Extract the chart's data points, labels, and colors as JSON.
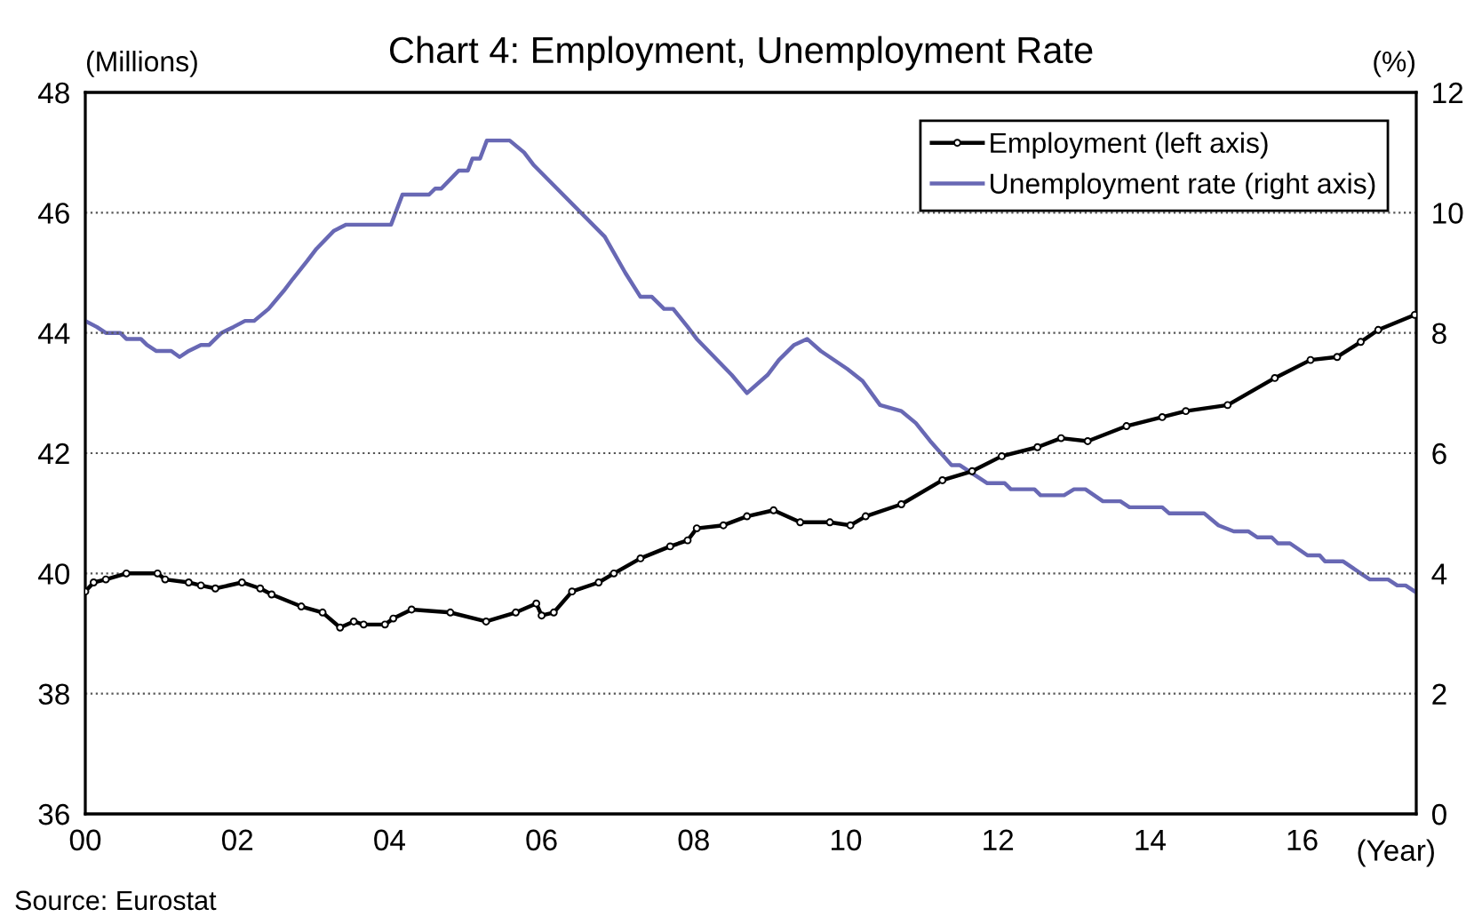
{
  "chart_data": {
    "type": "line",
    "title": "Chart 4: Employment, Unemployment Rate",
    "xlabel": "(Year)",
    "ylabel": "(Millions)",
    "y2label": "(%)",
    "annotations": [
      "Source: Eurostat"
    ],
    "xlim": [
      2000,
      2017.5
    ],
    "xticks": [
      {
        "value": 2000,
        "label": "00"
      },
      {
        "value": 2002,
        "label": "02"
      },
      {
        "value": 2004,
        "label": "04"
      },
      {
        "value": 2006,
        "label": "06"
      },
      {
        "value": 2008,
        "label": "08"
      },
      {
        "value": 2010,
        "label": "10"
      },
      {
        "value": 2012,
        "label": "12"
      },
      {
        "value": 2014,
        "label": "14"
      },
      {
        "value": 2016,
        "label": "16"
      }
    ],
    "ylim": [
      36,
      48
    ],
    "yticks": [
      36,
      38,
      40,
      42,
      44,
      46,
      48
    ],
    "y2lim": [
      0,
      12
    ],
    "y2ticks": [
      0,
      2,
      4,
      6,
      8,
      10,
      12
    ],
    "grid": "y",
    "legend": "top right",
    "line_style": "solid",
    "series": [
      {
        "name": "Employment (left axis)",
        "color": "#000000",
        "marker": "circle",
        "x": [
          2000.0,
          2000.11,
          2000.27,
          2000.54,
          2000.95,
          2001.05,
          2001.36,
          2001.52,
          2001.71,
          2002.06,
          2002.3,
          2002.45,
          2002.84,
          2003.12,
          2003.35,
          2003.53,
          2003.66,
          2003.94,
          2004.05,
          2004.29,
          2004.8,
          2005.27,
          2005.66,
          2005.93,
          2006.0,
          2006.16,
          2006.4,
          2006.75,
          2006.95,
          2007.3,
          2007.69,
          2007.92,
          2008.04,
          2008.39,
          2008.7,
          2009.05,
          2009.4,
          2009.79,
          2010.06,
          2010.26,
          2010.73,
          2011.27,
          2011.66,
          2012.05,
          2012.52,
          2012.83,
          2013.18,
          2013.69,
          2014.16,
          2014.47,
          2015.02,
          2015.64,
          2016.11,
          2016.46,
          2016.77,
          2017.0,
          2017.48
        ],
        "values": [
          39.7,
          39.85,
          39.9,
          40.0,
          40.0,
          39.9,
          39.85,
          39.8,
          39.75,
          39.85,
          39.75,
          39.65,
          39.45,
          39.35,
          39.1,
          39.2,
          39.15,
          39.15,
          39.25,
          39.4,
          39.35,
          39.2,
          39.35,
          39.5,
          39.3,
          39.35,
          39.7,
          39.85,
          40.0,
          40.25,
          40.45,
          40.55,
          40.75,
          40.8,
          40.95,
          41.05,
          40.85,
          40.85,
          40.8,
          40.95,
          41.15,
          41.55,
          41.7,
          41.95,
          42.1,
          42.25,
          42.2,
          42.45,
          42.6,
          42.7,
          42.8,
          43.25,
          43.55,
          43.6,
          43.85,
          44.05,
          44.3
        ]
      },
      {
        "name": "Unemployment rate (right axis)",
        "color": "#6868b4",
        "axis": "y2",
        "marker": "none",
        "x": [
          2000.0,
          2000.15,
          2000.27,
          2000.46,
          2000.54,
          2000.73,
          2000.81,
          2000.93,
          2001.13,
          2001.24,
          2001.36,
          2001.52,
          2001.63,
          2001.79,
          2001.95,
          2002.1,
          2002.22,
          2002.41,
          2002.61,
          2002.73,
          2002.92,
          2003.04,
          2003.27,
          2003.43,
          2004.02,
          2004.17,
          2004.52,
          2004.6,
          2004.68,
          2004.91,
          2005.03,
          2005.09,
          2005.19,
          2005.28,
          2005.58,
          2005.77,
          2005.89,
          2006.83,
          2007.1,
          2007.3,
          2007.45,
          2007.61,
          2007.73,
          2007.92,
          2008.04,
          2008.5,
          2008.7,
          2008.97,
          2009.12,
          2009.32,
          2009.49,
          2009.67,
          2010.02,
          2010.22,
          2010.45,
          2010.73,
          2010.92,
          2011.11,
          2011.39,
          2011.5,
          2011.86,
          2012.09,
          2012.17,
          2012.48,
          2012.56,
          2012.87,
          2013.0,
          2013.15,
          2013.38,
          2013.61,
          2013.73,
          2014.16,
          2014.25,
          2014.71,
          2014.9,
          2015.1,
          2015.29,
          2015.41,
          2015.6,
          2015.68,
          2015.84,
          2016.07,
          2016.23,
          2016.3,
          2016.54,
          2016.77,
          2016.89,
          2017.13,
          2017.25,
          2017.36,
          2017.48
        ],
        "values": [
          8.2,
          8.1,
          8.0,
          8.0,
          7.9,
          7.9,
          7.8,
          7.7,
          7.7,
          7.6,
          7.7,
          7.8,
          7.8,
          8.0,
          8.1,
          8.2,
          8.2,
          8.4,
          8.7,
          8.9,
          9.2,
          9.4,
          9.7,
          9.8,
          9.8,
          10.3,
          10.3,
          10.4,
          10.4,
          10.7,
          10.7,
          10.9,
          10.9,
          11.2,
          11.2,
          11.0,
          10.8,
          9.6,
          9.0,
          8.6,
          8.6,
          8.4,
          8.4,
          8.1,
          7.9,
          7.3,
          7.0,
          7.3,
          7.55,
          7.8,
          7.9,
          7.7,
          7.4,
          7.2,
          6.8,
          6.7,
          6.5,
          6.2,
          5.8,
          5.8,
          5.5,
          5.5,
          5.4,
          5.4,
          5.3,
          5.3,
          5.4,
          5.4,
          5.2,
          5.2,
          5.1,
          5.1,
          5.0,
          5.0,
          4.8,
          4.7,
          4.7,
          4.6,
          4.6,
          4.5,
          4.5,
          4.3,
          4.3,
          4.2,
          4.2,
          4.0,
          3.9,
          3.9,
          3.8,
          3.8,
          3.7
        ]
      }
    ]
  }
}
